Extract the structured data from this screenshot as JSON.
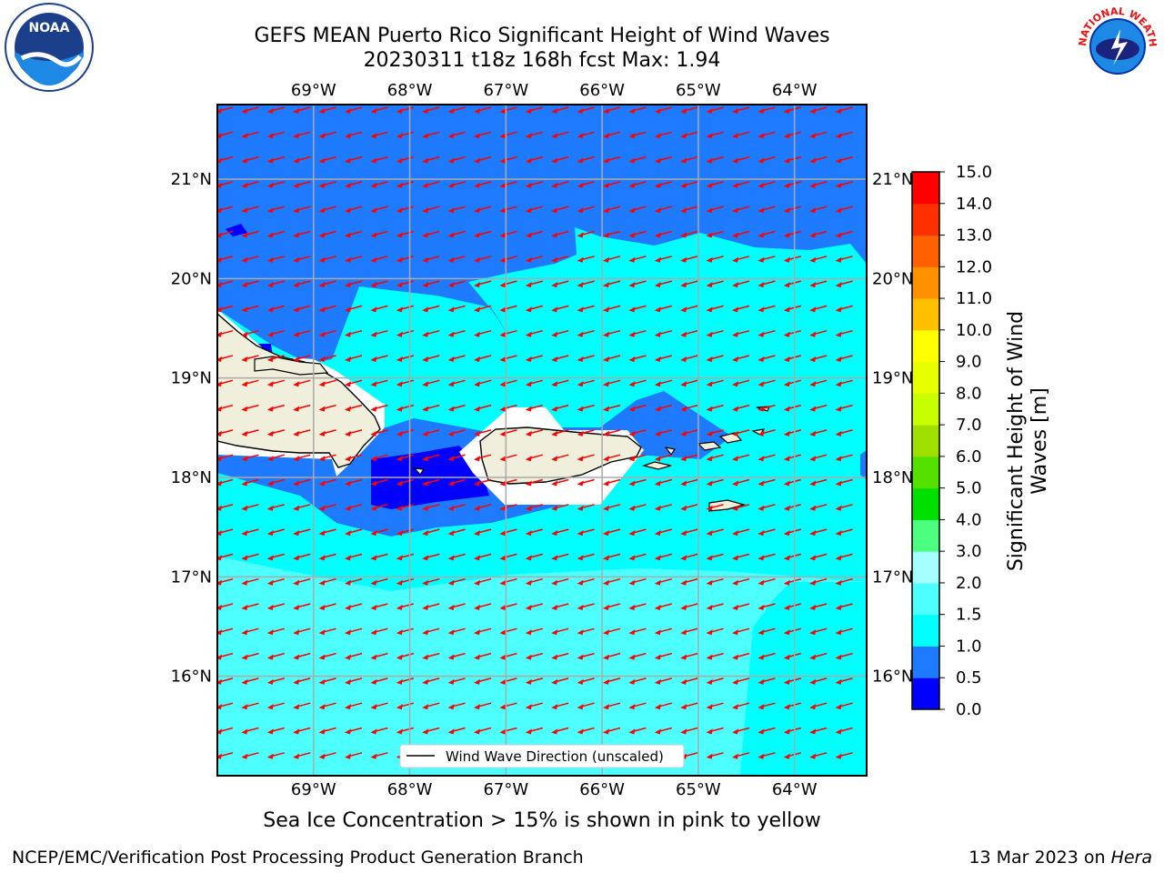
{
  "title_line1": "GEFS MEAN Puerto Rico Significant Height of Wind Waves",
  "title_line2": "20230311 t18z 168h fcst   Max: 1.94",
  "subtitle": "Sea Ice Concentration > 15% is shown in pink to yellow",
  "footer_left": "NCEP/EMC/Verification Post Processing Product Generation Branch",
  "footer_right_date": "13 Mar 2023 on ",
  "footer_right_host": "Hera",
  "logos": {
    "noaa_text": "NOAA",
    "nws_text": "NATIONAL WEATHER SERVICE"
  },
  "map": {
    "lon_range": [
      -70.0,
      -63.25
    ],
    "lat_range": [
      15.0,
      21.75
    ],
    "lon_labels": [
      "69°W",
      "68°W",
      "67°W",
      "66°W",
      "65°W",
      "64°W"
    ],
    "lat_labels": [
      "21°N",
      "20°N",
      "19°N",
      "18°N",
      "17°N",
      "16°N"
    ],
    "legend_label": "Wind Wave Direction (unscaled)",
    "arrow_color": "#ff0000"
  },
  "colorbar": {
    "label": "Significant Height of Wind Waves [m]",
    "tick_labels": [
      "0.0",
      "0.5",
      "1.0",
      "1.5",
      "2.0",
      "3.0",
      "4.0",
      "5.0",
      "6.0",
      "7.0",
      "8.0",
      "9.0",
      "10.0",
      "11.0",
      "12.0",
      "13.0",
      "14.0",
      "15.0"
    ],
    "colors": [
      "#0000ff",
      "#1e7bff",
      "#00ffff",
      "#4dffff",
      "#a6ffff",
      "#4dff80",
      "#00e000",
      "#55e000",
      "#a0e000",
      "#c8ff00",
      "#e8ff00",
      "#ffff00",
      "#ffc000",
      "#ff9000",
      "#ff6000",
      "#ff3000",
      "#ff0000"
    ]
  },
  "fill_colors": {
    "dark_blue": "#0000ff",
    "mid_blue": "#1e7bff",
    "cyan": "#00ffff",
    "light_cyan": "#4dffff",
    "land": "#efefdc",
    "no_data": "#ffffff"
  }
}
